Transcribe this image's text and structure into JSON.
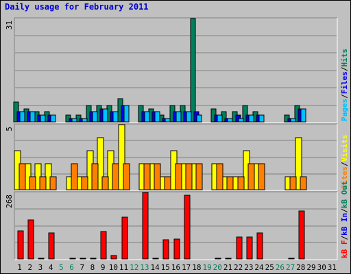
{
  "title": "Daily usage for February 2011",
  "colors": {
    "background": "#c0c0c0",
    "title": "#0000cc",
    "hits": "#00805c",
    "files": "#0000ff",
    "pages": "#00c0ff",
    "visits": "#ffff00",
    "sites": "#ff8000",
    "kb_f": "#ff0000",
    "kb_in": "#0000ff",
    "kb_out": "#00805c",
    "weekend_day": "#00805c",
    "weekday": "#000000"
  },
  "chart_data": [
    {
      "type": "bar",
      "name": "hits-files-pages",
      "max_label": "31",
      "ylim": [
        0,
        31
      ],
      "legend": [
        {
          "label": "Pages",
          "color": "#00c0ff"
        },
        {
          "label": "/",
          "color": "#000000"
        },
        {
          "label": "Files",
          "color": "#0000ff"
        },
        {
          "label": "/",
          "color": "#000000"
        },
        {
          "label": "Hits",
          "color": "#00805c"
        }
      ],
      "categories": [
        "1",
        "2",
        "3",
        "4",
        "5",
        "6",
        "7",
        "8",
        "9",
        "10",
        "11",
        "12",
        "13",
        "14",
        "15",
        "16",
        "17",
        "18",
        "19",
        "20",
        "21",
        "22",
        "23",
        "24",
        "25",
        "26",
        "27",
        "28",
        "29",
        "30",
        "31"
      ],
      "series": [
        {
          "name": "Hits",
          "color": "#00805c",
          "values": [
            6,
            4,
            3,
            3,
            0,
            2,
            2,
            5,
            5,
            5,
            7,
            0,
            5,
            4,
            2,
            5,
            5,
            31,
            0,
            4,
            3,
            3,
            5,
            3,
            0,
            0,
            2,
            5,
            0,
            0,
            0
          ]
        },
        {
          "name": "Files",
          "color": "#0000ff",
          "values": [
            3,
            3,
            2,
            2,
            0,
            1,
            1,
            3,
            4,
            3,
            5,
            0,
            3,
            3,
            1,
            3,
            3,
            3,
            0,
            2,
            1,
            2,
            2,
            2,
            0,
            0,
            1,
            4,
            0,
            0,
            0
          ]
        },
        {
          "name": "Pages",
          "color": "#00c0ff",
          "values": [
            3,
            3,
            2,
            2,
            0,
            1,
            1,
            3,
            4,
            3,
            5,
            0,
            3,
            3,
            1,
            3,
            3,
            2,
            0,
            2,
            1,
            1,
            2,
            2,
            0,
            0,
            1,
            4,
            0,
            0,
            0
          ]
        }
      ]
    },
    {
      "type": "bar",
      "name": "visits-sites",
      "max_label": "5",
      "ylim": [
        0,
        5
      ],
      "legend": [
        {
          "label": "Sites",
          "color": "#ff8000"
        },
        {
          "label": "/",
          "color": "#000000"
        },
        {
          "label": "Visits",
          "color": "#ffff00"
        }
      ],
      "categories": [
        "1",
        "2",
        "3",
        "4",
        "5",
        "6",
        "7",
        "8",
        "9",
        "10",
        "11",
        "12",
        "13",
        "14",
        "15",
        "16",
        "17",
        "18",
        "19",
        "20",
        "21",
        "22",
        "23",
        "24",
        "25",
        "26",
        "27",
        "28",
        "29",
        "30",
        "31"
      ],
      "series": [
        {
          "name": "Visits",
          "color": "#ffff00",
          "values": [
            3,
            2,
            2,
            2,
            0,
            1,
            1,
            3,
            4,
            3,
            5,
            0,
            2,
            2,
            1,
            3,
            2,
            2,
            0,
            2,
            1,
            1,
            3,
            2,
            0,
            0,
            1,
            4,
            0,
            0,
            0
          ]
        },
        {
          "name": "Sites",
          "color": "#ff8000",
          "values": [
            2,
            1,
            1,
            1,
            0,
            2,
            1,
            2,
            1,
            2,
            2,
            0,
            2,
            2,
            1,
            2,
            2,
            2,
            0,
            2,
            1,
            1,
            2,
            2,
            0,
            0,
            1,
            1,
            0,
            0,
            0
          ]
        }
      ]
    },
    {
      "type": "bar",
      "name": "kbytes",
      "max_label": "268",
      "ylim": [
        0,
        268
      ],
      "legend": [
        {
          "label": "kB F",
          "color": "#ff0000"
        },
        {
          "label": "/",
          "color": "#000000"
        },
        {
          "label": "kB In",
          "color": "#0000ff"
        },
        {
          "label": "/",
          "color": "#000000"
        },
        {
          "label": "kB Out",
          "color": "#00805c"
        }
      ],
      "categories": [
        "1",
        "2",
        "3",
        "4",
        "5",
        "6",
        "7",
        "8",
        "9",
        "10",
        "11",
        "12",
        "13",
        "14",
        "15",
        "16",
        "17",
        "18",
        "19",
        "20",
        "21",
        "22",
        "23",
        "24",
        "25",
        "26",
        "27",
        "28",
        "29",
        "30",
        "31"
      ],
      "series": [
        {
          "name": "kB F",
          "color": "#ff0000",
          "values": [
            114,
            158,
            4,
            104,
            0,
            4,
            4,
            4,
            110,
            15,
            168,
            0,
            268,
            4,
            78,
            80,
            257,
            0,
            0,
            4,
            4,
            88,
            88,
            105,
            0,
            0,
            4,
            193,
            0,
            0,
            0
          ]
        }
      ]
    }
  ],
  "x_labels": [
    {
      "text": "1",
      "weekend": false
    },
    {
      "text": "2",
      "weekend": false
    },
    {
      "text": "3",
      "weekend": false
    },
    {
      "text": "4",
      "weekend": false
    },
    {
      "text": "5",
      "weekend": true
    },
    {
      "text": "6",
      "weekend": true
    },
    {
      "text": "7",
      "weekend": false
    },
    {
      "text": "8",
      "weekend": false
    },
    {
      "text": "9",
      "weekend": false
    },
    {
      "text": "10",
      "weekend": false
    },
    {
      "text": "11",
      "weekend": false
    },
    {
      "text": "12",
      "weekend": true
    },
    {
      "text": "13",
      "weekend": true
    },
    {
      "text": "14",
      "weekend": false
    },
    {
      "text": "15",
      "weekend": false
    },
    {
      "text": "16",
      "weekend": false
    },
    {
      "text": "17",
      "weekend": false
    },
    {
      "text": "18",
      "weekend": false
    },
    {
      "text": "19",
      "weekend": true
    },
    {
      "text": "20",
      "weekend": true
    },
    {
      "text": "21",
      "weekend": false
    },
    {
      "text": "22",
      "weekend": false
    },
    {
      "text": "23",
      "weekend": false
    },
    {
      "text": "24",
      "weekend": false
    },
    {
      "text": "25",
      "weekend": false
    },
    {
      "text": "26",
      "weekend": true
    },
    {
      "text": "27",
      "weekend": true
    },
    {
      "text": "28",
      "weekend": false
    },
    {
      "text": "29",
      "weekend": false
    },
    {
      "text": "30",
      "weekend": false
    },
    {
      "text": "31",
      "weekend": false
    }
  ]
}
